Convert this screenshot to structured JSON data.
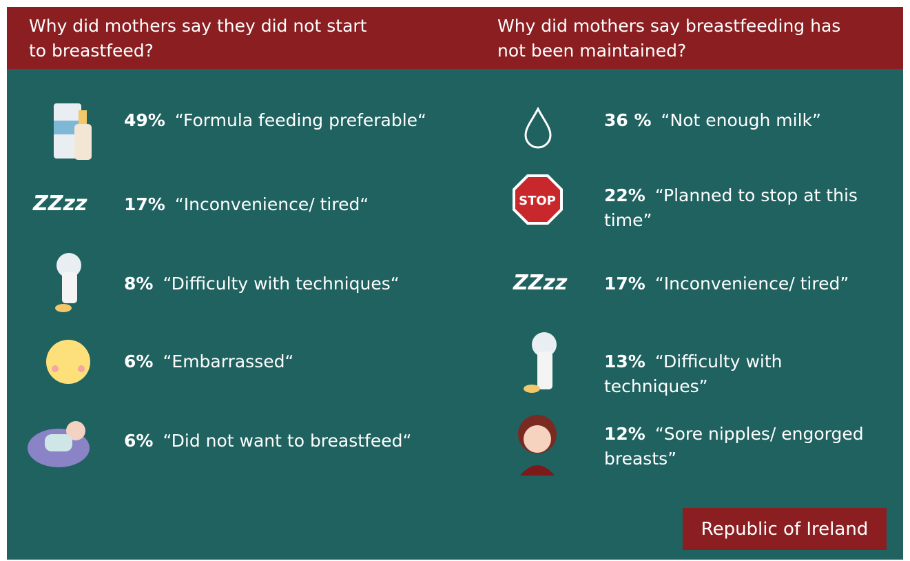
{
  "header": {
    "left_title": "Why did mothers say they did not start to breastfeed?",
    "right_title": "Why did mothers say breastfeeding has not been maintained?"
  },
  "left_items": [
    {
      "percent": "49%",
      "label": "“Formula feeding preferable“"
    },
    {
      "percent": "17%",
      "label": "“Inconvenience/ tired“"
    },
    {
      "percent": "8%",
      "label": "“Difficulty with techniques“"
    },
    {
      "percent": "6%",
      "label": "“Embarrassed“"
    },
    {
      "percent": "6%",
      "label": "“Did not want to breastfeed“"
    }
  ],
  "right_items": [
    {
      "percent": "36 %",
      "label": "“Not enough milk”"
    },
    {
      "percent": "22%",
      "label": "“Planned to stop at this time”"
    },
    {
      "percent": "17%",
      "label": "“Inconvenience/ tired”"
    },
    {
      "percent": "13%",
      "label": "“Difficulty with techniques”"
    },
    {
      "percent": "12%",
      "label": "“Sore nipples/ engorged breasts”"
    }
  ],
  "footer": {
    "region": "Republic of Ireland"
  }
}
